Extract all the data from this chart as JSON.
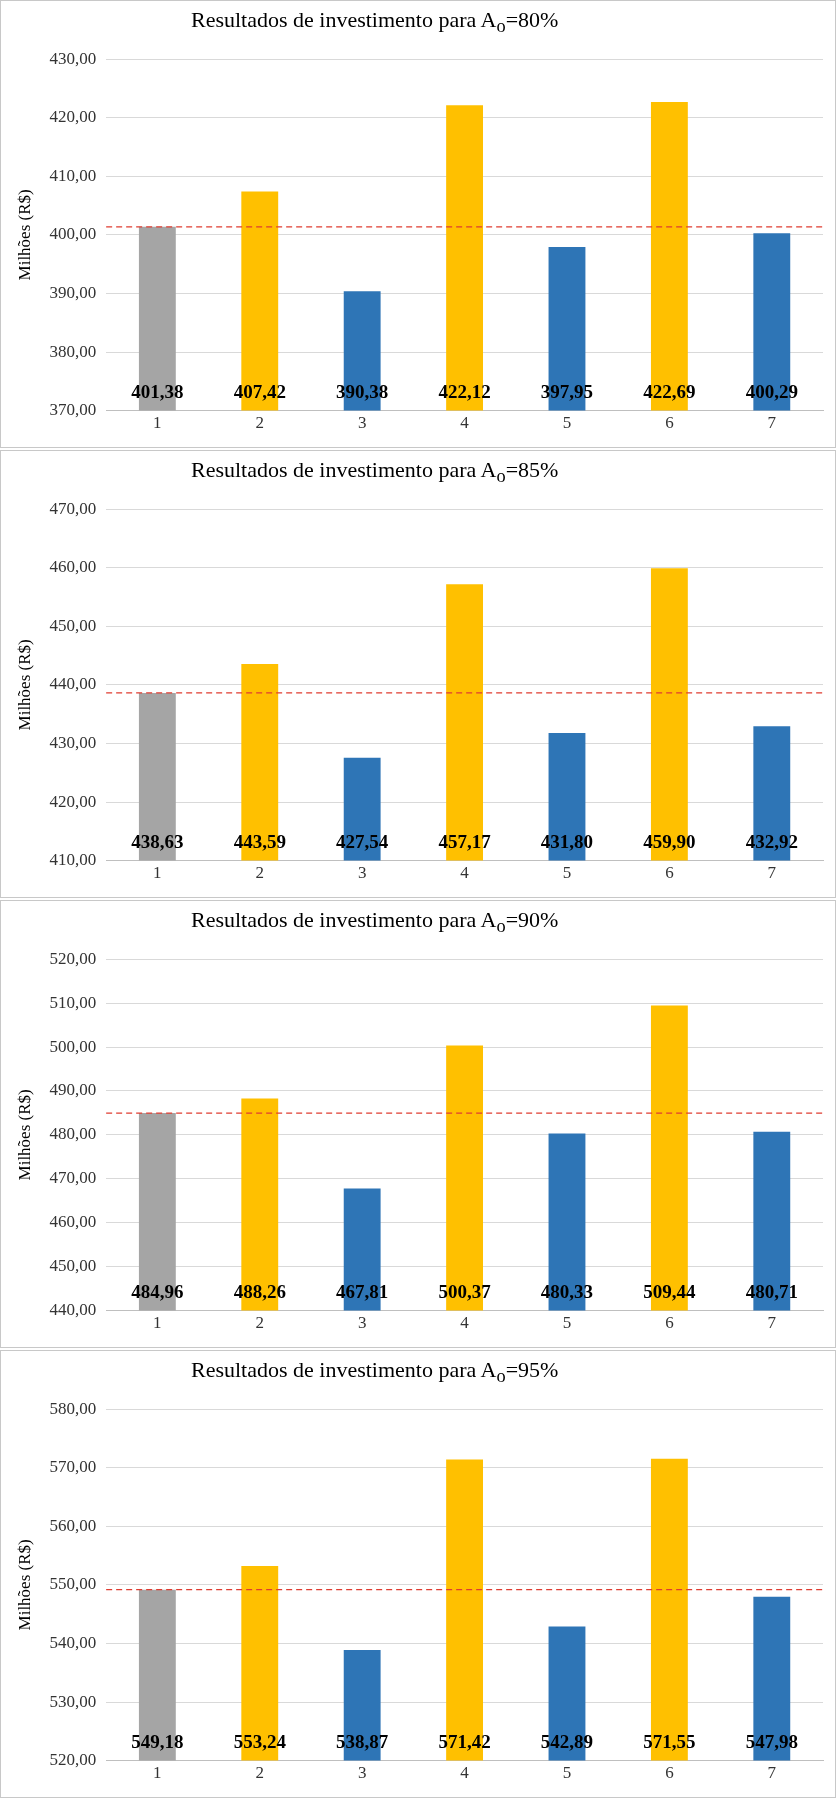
{
  "chart_data": [
    {
      "type": "bar",
      "title": "Resultados de investimento para A$_{o}$=80%",
      "ylabel": "Milhões (R$)",
      "categories": [
        "1",
        "2",
        "3",
        "4",
        "5",
        "6",
        "7"
      ],
      "values": [
        401.38,
        407.42,
        390.38,
        422.12,
        397.95,
        422.69,
        400.29
      ],
      "colors": [
        "#a5a5a5",
        "#ffc000",
        "#2e75b6",
        "#ffc000",
        "#2e75b6",
        "#ffc000",
        "#2e75b6"
      ],
      "value_labels": [
        "401,38",
        "407,42",
        "390,38",
        "422,12",
        "397,95",
        "422,69",
        "400,29"
      ],
      "ylim": [
        370,
        430
      ],
      "yticks": [
        {
          "value": 370,
          "label": "370,00"
        },
        {
          "value": 380,
          "label": "380,00"
        },
        {
          "value": 390,
          "label": "390,00"
        },
        {
          "value": 400,
          "label": "400,00"
        },
        {
          "value": 410,
          "label": "410,00"
        },
        {
          "value": 420,
          "label": "420,00"
        },
        {
          "value": 430,
          "label": "430,00"
        }
      ],
      "ref_lines": [
        {
          "axis": "y",
          "value": 401.38,
          "color": "#e03c31",
          "line_style": "dashed"
        }
      ],
      "grid": "y",
      "legend": false
    },
    {
      "type": "bar",
      "title": "Resultados de investimento para A$_{o}$=85%",
      "ylabel": "Milhões (R$)",
      "categories": [
        "1",
        "2",
        "3",
        "4",
        "5",
        "6",
        "7"
      ],
      "values": [
        438.63,
        443.59,
        427.54,
        457.17,
        431.8,
        459.9,
        432.92
      ],
      "colors": [
        "#a5a5a5",
        "#ffc000",
        "#2e75b6",
        "#ffc000",
        "#2e75b6",
        "#ffc000",
        "#2e75b6"
      ],
      "value_labels": [
        "438,63",
        "443,59",
        "427,54",
        "457,17",
        "431,80",
        "459,90",
        "432,92"
      ],
      "ylim": [
        410,
        470
      ],
      "yticks": [
        {
          "value": 410,
          "label": "410,00"
        },
        {
          "value": 420,
          "label": "420,00"
        },
        {
          "value": 430,
          "label": "430,00"
        },
        {
          "value": 440,
          "label": "440,00"
        },
        {
          "value": 450,
          "label": "450,00"
        },
        {
          "value": 460,
          "label": "460,00"
        },
        {
          "value": 470,
          "label": "470,00"
        }
      ],
      "ref_lines": [
        {
          "axis": "y",
          "value": 438.63,
          "color": "#e03c31",
          "line_style": "dashed"
        }
      ],
      "grid": "y",
      "legend": false
    },
    {
      "type": "bar",
      "title": "Resultados de investimento para A$_{o}$=90%",
      "ylabel": "Milhões (R$)",
      "categories": [
        "1",
        "2",
        "3",
        "4",
        "5",
        "6",
        "7"
      ],
      "values": [
        484.96,
        488.26,
        467.81,
        500.37,
        480.33,
        509.44,
        480.71
      ],
      "colors": [
        "#a5a5a5",
        "#ffc000",
        "#2e75b6",
        "#ffc000",
        "#2e75b6",
        "#ffc000",
        "#2e75b6"
      ],
      "value_labels": [
        "484,96",
        "488,26",
        "467,81",
        "500,37",
        "480,33",
        "509,44",
        "480,71"
      ],
      "ylim": [
        440,
        520
      ],
      "yticks": [
        {
          "value": 440,
          "label": "440,00"
        },
        {
          "value": 450,
          "label": "450,00"
        },
        {
          "value": 460,
          "label": "460,00"
        },
        {
          "value": 470,
          "label": "470,00"
        },
        {
          "value": 480,
          "label": "480,00"
        },
        {
          "value": 490,
          "label": "490,00"
        },
        {
          "value": 500,
          "label": "500,00"
        },
        {
          "value": 510,
          "label": "510,00"
        },
        {
          "value": 520,
          "label": "520,00"
        }
      ],
      "ref_lines": [
        {
          "axis": "y",
          "value": 484.96,
          "color": "#e03c31",
          "line_style": "dashed"
        }
      ],
      "grid": "y",
      "legend": false
    },
    {
      "type": "bar",
      "title": "Resultados de investimento para A$_{o}$=95%",
      "ylabel": "Milhões (R$)",
      "categories": [
        "1",
        "2",
        "3",
        "4",
        "5",
        "6",
        "7"
      ],
      "values": [
        549.18,
        553.24,
        538.87,
        571.42,
        542.89,
        571.55,
        547.98
      ],
      "colors": [
        "#a5a5a5",
        "#ffc000",
        "#2e75b6",
        "#ffc000",
        "#2e75b6",
        "#ffc000",
        "#2e75b6"
      ],
      "value_labels": [
        "549,18",
        "553,24",
        "538,87",
        "571,42",
        "542,89",
        "571,55",
        "547,98"
      ],
      "ylim": [
        520,
        580
      ],
      "yticks": [
        {
          "value": 520,
          "label": "520,00"
        },
        {
          "value": 530,
          "label": "530,00"
        },
        {
          "value": 540,
          "label": "540,00"
        },
        {
          "value": 550,
          "label": "550,00"
        },
        {
          "value": 560,
          "label": "560,00"
        },
        {
          "value": 570,
          "label": "570,00"
        },
        {
          "value": 580,
          "label": "580,00"
        }
      ],
      "ref_lines": [
        {
          "axis": "y",
          "value": 549.18,
          "color": "#e03c31",
          "line_style": "dashed"
        }
      ],
      "grid": "y",
      "legend": false
    }
  ]
}
